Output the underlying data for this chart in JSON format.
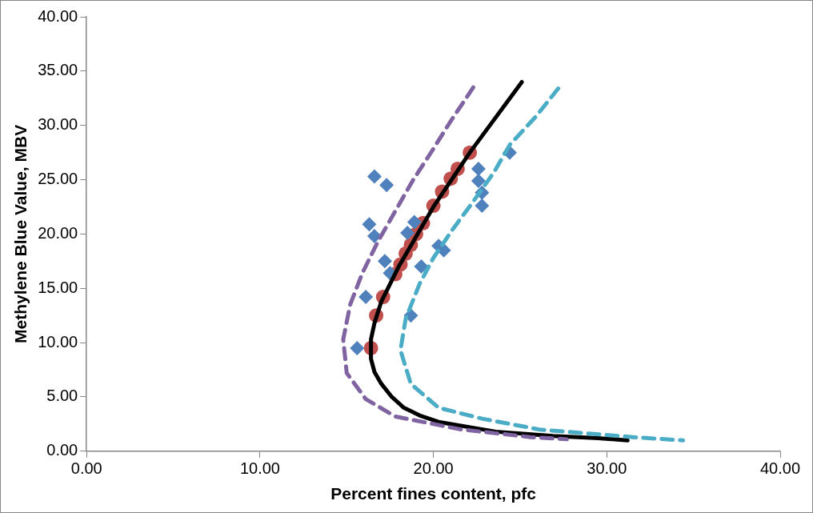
{
  "chart_data": {
    "type": "scatter",
    "xlabel": "Percent fines content, pfc",
    "ylabel": "Methylene Blue Value, MBV",
    "xlim": [
      0,
      40
    ],
    "ylim": [
      0,
      40
    ],
    "xticks": [
      {
        "value": 0,
        "label": "0.00"
      },
      {
        "value": 10,
        "label": "10.00"
      },
      {
        "value": 20,
        "label": "20.00"
      },
      {
        "value": 30,
        "label": "30.00"
      },
      {
        "value": 40,
        "label": "40.00"
      }
    ],
    "yticks": [
      {
        "value": 0,
        "label": "0.00"
      },
      {
        "value": 5,
        "label": "5.00"
      },
      {
        "value": 10,
        "label": "10.00"
      },
      {
        "value": 15,
        "label": "15.00"
      },
      {
        "value": 20,
        "label": "20.00"
      },
      {
        "value": 25,
        "label": "25.00"
      },
      {
        "value": 30,
        "label": "30.00"
      },
      {
        "value": 35,
        "label": "35.00"
      },
      {
        "value": 40,
        "label": "40.00"
      }
    ],
    "grid": false,
    "legend": false,
    "series": [
      {
        "type": "scatter",
        "marker": "diamond",
        "color": "#4f81bd",
        "x": [
          16.6,
          17.3,
          16.3,
          16.6,
          18.9,
          18.5,
          17.2,
          17.5,
          20.3,
          20.6,
          19.3,
          24.4,
          22.6,
          22.6,
          22.8,
          22.8,
          18.7,
          16.1,
          15.6
        ],
        "values": [
          25.3,
          24.5,
          20.9,
          19.8,
          21.1,
          20.1,
          17.5,
          16.4,
          18.9,
          18.5,
          17.0,
          27.5,
          26.0,
          24.9,
          23.8,
          22.6,
          12.5,
          14.2,
          9.5
        ]
      },
      {
        "type": "scatter",
        "marker": "circle",
        "color": "#c0504d",
        "x": [
          22.1,
          21.4,
          21.0,
          20.5,
          20.0,
          19.4,
          19.0,
          18.7,
          18.4,
          18.1,
          17.8,
          17.1,
          16.7,
          16.4
        ],
        "values": [
          27.5,
          26.0,
          25.1,
          23.9,
          22.6,
          21.0,
          20.0,
          19.0,
          18.2,
          17.2,
          16.3,
          14.2,
          12.5,
          9.5
        ]
      },
      {
        "type": "line",
        "marker": "none",
        "line_style": "dashed",
        "color": "#8064a2",
        "x": [
          22.3,
          21.0,
          19.9,
          18.8,
          17.8,
          16.8,
          15.9,
          15.2,
          14.8,
          15.0,
          16.1,
          17.8,
          21.6,
          25.6,
          27.7
        ],
        "values": [
          33.5,
          30.4,
          27.6,
          24.9,
          22.1,
          19.3,
          16.4,
          13.5,
          10.3,
          7.2,
          4.8,
          3.2,
          2.0,
          1.3,
          1.1
        ]
      },
      {
        "type": "line",
        "marker": "none",
        "line_style": "dashed",
        "color": "#4bacc6",
        "x": [
          27.2,
          25.9,
          24.4,
          23.5,
          22.3,
          21.1,
          20.0,
          19.2,
          18.4,
          18.1,
          18.7,
          20.3,
          22.8,
          26.1,
          31.5,
          34.4
        ],
        "values": [
          33.4,
          30.8,
          28.2,
          25.7,
          23.0,
          20.4,
          17.8,
          15.4,
          12.2,
          9.3,
          6.2,
          4.0,
          3.0,
          2.0,
          1.3,
          1.0
        ]
      },
      {
        "type": "line",
        "marker": "none",
        "line_style": "solid",
        "color": "#000000",
        "x": [
          25.1,
          22.1,
          20.0,
          18.0,
          17.0,
          16.6,
          16.4,
          16.4,
          16.6,
          17.0,
          17.6,
          18.3,
          19.2,
          20.3,
          23.6,
          26.9,
          29.5,
          31.2
        ],
        "values": [
          34.0,
          27.5,
          22.5,
          17.0,
          13.8,
          11.8,
          10.3,
          8.5,
          7.3,
          6.2,
          5.0,
          4.0,
          3.3,
          2.7,
          1.8,
          1.4,
          1.2,
          1.0
        ]
      }
    ]
  }
}
